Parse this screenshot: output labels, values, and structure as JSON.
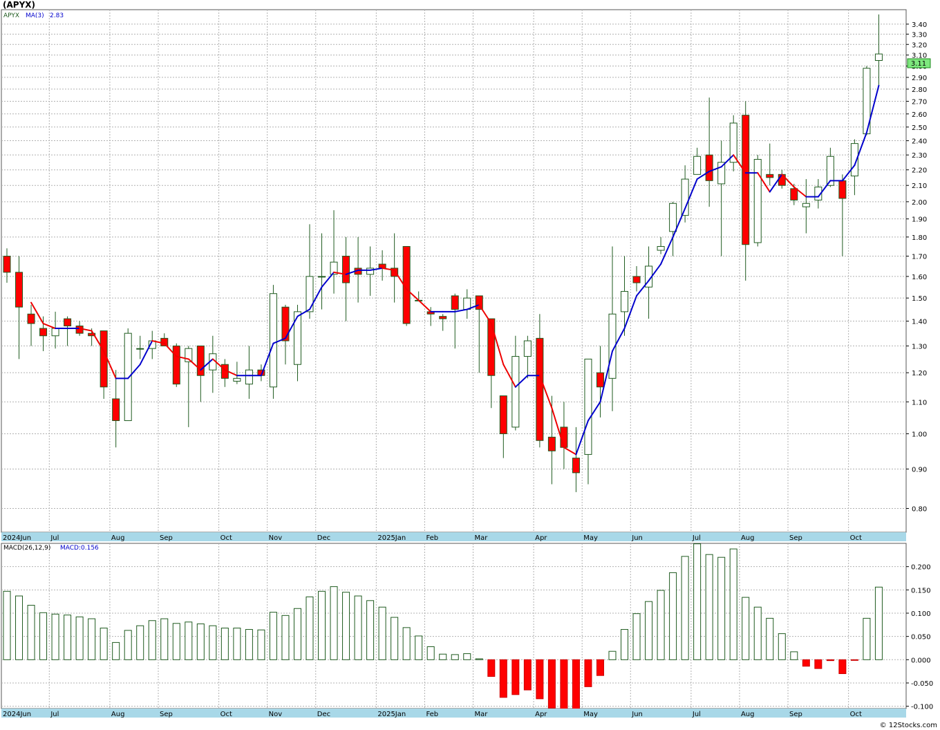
{
  "title": "(APYX)",
  "price_legend": {
    "symbol": "APYX",
    "ma_label": "MA(3)",
    "ma_value": "2.83"
  },
  "last_price_label": "3.11",
  "macd_legend": {
    "label": "MACD(26,12,9)",
    "value": "MACD:0.156"
  },
  "watermark": "© 12Stocks.com",
  "colors": {
    "up_body": "#ffffff",
    "up_border": "#1e5a1e",
    "down_body": "#ff0000",
    "ma_up": "#0000cc",
    "ma_down": "#ee0000",
    "axis_band": "#a8d8e8",
    "last_price_bg": "#7ee87e"
  },
  "chart_data": [
    {
      "type": "candlestick",
      "scale": "log",
      "ylim": [
        0.745,
        3.55
      ],
      "y_ticks": [
        "3.40",
        "3.30",
        "3.20",
        "3.10",
        "3.00",
        "2.90",
        "2.80",
        "2.70",
        "2.60",
        "2.50",
        "2.40",
        "2.30",
        "2.20",
        "2.10",
        "2.00",
        "1.90",
        "1.80",
        "1.70",
        "1.60",
        "1.50",
        "1.40",
        "1.30",
        "1.20",
        "1.10",
        "1.00",
        "0.90",
        "0.80"
      ],
      "x_labels": [
        "2024Jun",
        "Jul",
        "Aug",
        "Sep",
        "Oct",
        "Nov",
        "Dec",
        "2025Jan",
        "Feb",
        "Mar",
        "Apr",
        "May",
        "Jun",
        "Jul",
        "Aug",
        "Sep",
        "Oct"
      ],
      "x_label_week": [
        0,
        4,
        9,
        13,
        18,
        22,
        26,
        31,
        35,
        39,
        44,
        48,
        52,
        57,
        61,
        65,
        70
      ],
      "ohlc": [
        [
          1.7,
          1.74,
          1.57,
          1.62
        ],
        [
          1.62,
          1.7,
          1.25,
          1.46
        ],
        [
          1.43,
          1.47,
          1.3,
          1.39
        ],
        [
          1.37,
          1.42,
          1.28,
          1.34
        ],
        [
          1.34,
          1.44,
          1.29,
          1.37
        ],
        [
          1.41,
          1.42,
          1.3,
          1.38
        ],
        [
          1.38,
          1.4,
          1.34,
          1.35
        ],
        [
          1.35,
          1.37,
          1.3,
          1.34
        ],
        [
          1.36,
          1.36,
          1.11,
          1.15
        ],
        [
          1.11,
          1.21,
          0.96,
          1.04
        ],
        [
          1.04,
          1.37,
          1.04,
          1.35
        ],
        [
          1.29,
          1.34,
          1.25,
          1.29
        ],
        [
          1.29,
          1.36,
          1.25,
          1.32
        ],
        [
          1.33,
          1.35,
          1.3,
          1.3
        ],
        [
          1.3,
          1.31,
          1.15,
          1.16
        ],
        [
          1.24,
          1.3,
          1.02,
          1.29
        ],
        [
          1.3,
          1.3,
          1.1,
          1.19
        ],
        [
          1.21,
          1.34,
          1.13,
          1.27
        ],
        [
          1.23,
          1.25,
          1.15,
          1.18
        ],
        [
          1.17,
          1.24,
          1.16,
          1.18
        ],
        [
          1.16,
          1.3,
          1.11,
          1.21
        ],
        [
          1.21,
          1.23,
          1.17,
          1.19
        ],
        [
          1.15,
          1.56,
          1.11,
          1.52
        ],
        [
          1.46,
          1.47,
          1.23,
          1.32
        ],
        [
          1.23,
          1.47,
          1.17,
          1.44
        ],
        [
          1.44,
          1.87,
          1.41,
          1.6
        ],
        [
          1.6,
          1.82,
          1.45,
          1.6
        ],
        [
          1.61,
          1.95,
          1.52,
          1.67
        ],
        [
          1.7,
          1.8,
          1.4,
          1.57
        ],
        [
          1.64,
          1.8,
          1.48,
          1.61
        ],
        [
          1.61,
          1.75,
          1.51,
          1.64
        ],
        [
          1.66,
          1.73,
          1.58,
          1.64
        ],
        [
          1.64,
          1.82,
          1.48,
          1.6
        ],
        [
          1.75,
          1.75,
          1.38,
          1.39
        ],
        [
          1.49,
          1.53,
          1.49,
          1.49
        ],
        [
          1.44,
          1.46,
          1.38,
          1.43
        ],
        [
          1.42,
          1.43,
          1.36,
          1.41
        ],
        [
          1.51,
          1.52,
          1.29,
          1.45
        ],
        [
          1.45,
          1.54,
          1.41,
          1.5
        ],
        [
          1.51,
          1.51,
          1.2,
          1.45
        ],
        [
          1.41,
          1.41,
          1.08,
          1.19
        ],
        [
          1.12,
          1.12,
          0.93,
          1.0
        ],
        [
          1.02,
          1.34,
          1.01,
          1.26
        ],
        [
          1.26,
          1.34,
          1.18,
          1.32
        ],
        [
          1.33,
          1.43,
          0.96,
          0.98
        ],
        [
          0.99,
          1.12,
          0.86,
          0.95
        ],
        [
          1.02,
          1.1,
          0.9,
          0.96
        ],
        [
          0.93,
          1.02,
          0.84,
          0.89
        ],
        [
          0.94,
          1.25,
          0.86,
          1.25
        ],
        [
          1.2,
          1.3,
          1.05,
          1.15
        ],
        [
          1.18,
          1.75,
          1.07,
          1.43
        ],
        [
          1.44,
          1.7,
          1.34,
          1.53
        ],
        [
          1.6,
          1.65,
          1.53,
          1.57
        ],
        [
          1.55,
          1.75,
          1.41,
          1.65
        ],
        [
          1.73,
          1.8,
          1.71,
          1.75
        ],
        [
          1.83,
          2.0,
          1.7,
          1.99
        ],
        [
          1.92,
          2.23,
          1.88,
          2.14
        ],
        [
          2.17,
          2.35,
          2.17,
          2.29
        ],
        [
          2.3,
          2.73,
          1.97,
          2.13
        ],
        [
          2.11,
          2.4,
          1.7,
          2.25
        ],
        [
          2.25,
          2.59,
          2.19,
          2.53
        ],
        [
          2.59,
          2.7,
          1.58,
          1.76
        ],
        [
          1.77,
          2.3,
          1.75,
          2.27
        ],
        [
          2.17,
          2.38,
          2.1,
          2.15
        ],
        [
          2.17,
          2.2,
          2.08,
          2.1
        ],
        [
          2.08,
          2.11,
          1.98,
          2.01
        ],
        [
          1.97,
          2.14,
          1.82,
          1.99
        ],
        [
          2.01,
          2.14,
          1.96,
          2.09
        ],
        [
          2.1,
          2.35,
          2.09,
          2.29
        ],
        [
          2.13,
          2.17,
          1.7,
          2.02
        ],
        [
          2.16,
          2.41,
          2.04,
          2.38
        ],
        [
          2.45,
          3.0,
          2.44,
          2.98
        ],
        [
          3.05,
          3.5,
          2.82,
          3.11
        ]
      ],
      "ma3": [
        null,
        null,
        1.48,
        1.39,
        1.37,
        1.37,
        1.37,
        1.36,
        1.28,
        1.18,
        1.18,
        1.23,
        1.32,
        1.31,
        1.26,
        1.25,
        1.21,
        1.25,
        1.21,
        1.19,
        1.19,
        1.19,
        1.31,
        1.33,
        1.42,
        1.45,
        1.55,
        1.62,
        1.61,
        1.63,
        1.63,
        1.64,
        1.63,
        1.54,
        1.49,
        1.44,
        1.44,
        1.44,
        1.45,
        1.47,
        1.39,
        1.23,
        1.15,
        1.19,
        1.19,
        1.08,
        0.96,
        0.94,
        1.04,
        1.1,
        1.28,
        1.37,
        1.51,
        1.58,
        1.66,
        1.8,
        1.96,
        2.14,
        2.19,
        2.22,
        2.3,
        2.18,
        2.18,
        2.06,
        2.17,
        2.09,
        2.03,
        2.03,
        2.13,
        2.13,
        2.23,
        2.46,
        2.83
      ],
      "last_value": 3.11
    },
    {
      "type": "bar",
      "title": "MACD(26,12,9)",
      "ylim": [
        -0.105,
        0.25
      ],
      "y_ticks": [
        "0.200",
        "0.150",
        "0.100",
        "0.050",
        "0.000",
        "-0.050",
        "-0.100"
      ],
      "values": [
        0.147,
        0.137,
        0.117,
        0.101,
        0.098,
        0.096,
        0.092,
        0.088,
        0.068,
        0.037,
        0.063,
        0.073,
        0.084,
        0.088,
        0.078,
        0.081,
        0.077,
        0.073,
        0.068,
        0.068,
        0.065,
        0.064,
        0.102,
        0.095,
        0.11,
        0.135,
        0.147,
        0.157,
        0.145,
        0.137,
        0.127,
        0.113,
        0.091,
        0.069,
        0.051,
        0.028,
        0.012,
        0.011,
        0.013,
        0.002,
        -0.036,
        -0.081,
        -0.075,
        -0.065,
        -0.084,
        -0.104,
        -0.109,
        -0.114,
        -0.058,
        -0.034,
        0.018,
        0.065,
        0.099,
        0.125,
        0.149,
        0.187,
        0.222,
        0.249,
        0.226,
        0.22,
        0.238,
        0.134,
        0.113,
        0.089,
        0.056,
        0.017,
        -0.014,
        -0.019,
        -0.002,
        -0.03,
        -0.001,
        0.089,
        0.156
      ],
      "last_value": 0.156
    }
  ]
}
